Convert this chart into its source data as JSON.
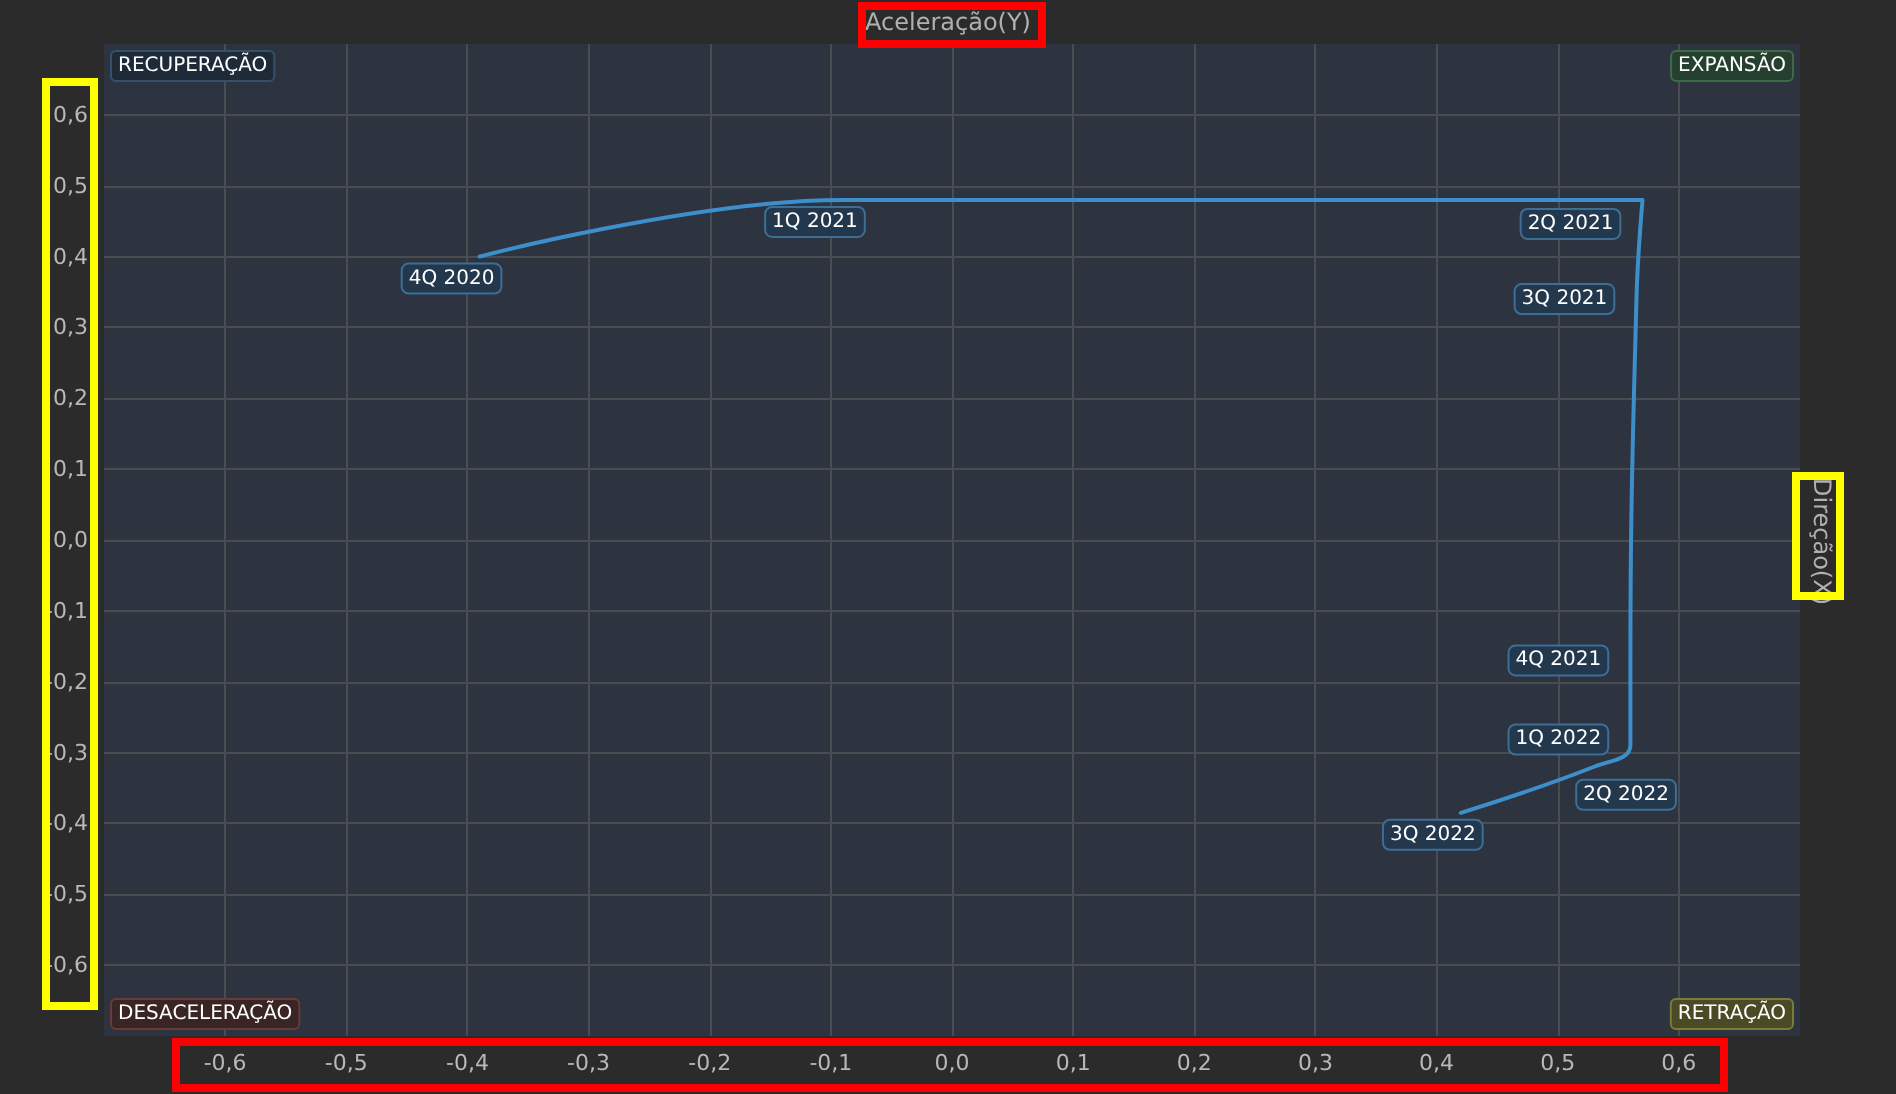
{
  "chart_data": {
    "type": "line",
    "series": [
      {
        "color": "#3d8fcc",
        "x": [
          -0.39,
          -0.09,
          0.57,
          0.565,
          0.56,
          0.56,
          0.53,
          0.42
        ],
        "values": [
          0.4,
          0.48,
          0.48,
          0.34,
          -0.17,
          -0.29,
          -0.32,
          -0.385
        ]
      }
    ],
    "annotations": [
      "RECUPERAÇÃO",
      "EXPANSÃO",
      "DESACELERAÇÃO",
      "RETRAÇÃO",
      "Aceleração(Y)",
      "Direção(X)",
      {
        "text": "4Q 2020",
        "x": -0.39,
        "y": 0.4
      },
      {
        "text": "1Q 2021",
        "x": -0.09,
        "y": 0.48
      },
      {
        "text": "2Q 2021",
        "x": 0.57,
        "y": 0.48
      },
      {
        "text": "3Q 2021",
        "x": 0.565,
        "y": 0.34
      },
      {
        "text": "4Q 2021",
        "x": 0.56,
        "y": -0.17
      },
      {
        "text": "1Q 2022",
        "x": 0.56,
        "y": -0.29
      },
      {
        "text": "2Q 2022",
        "x": 0.53,
        "y": -0.32
      },
      {
        "text": "3Q 2022",
        "x": 0.42,
        "y": -0.385
      }
    ],
    "xlim": [
      -0.7,
      0.7
    ],
    "ylim": [
      -0.7,
      0.7
    ],
    "xticks": [
      {
        "value": -0.6,
        "label": "-0,6"
      },
      {
        "value": -0.5,
        "label": "-0,5"
      },
      {
        "value": -0.4,
        "label": "-0,4"
      },
      {
        "value": -0.3,
        "label": "-0,3"
      },
      {
        "value": -0.2,
        "label": "-0,2"
      },
      {
        "value": -0.1,
        "label": "-0,1"
      },
      {
        "value": 0,
        "label": "0,0"
      },
      {
        "value": 0.1,
        "label": "0,1"
      },
      {
        "value": 0.2,
        "label": "0,2"
      },
      {
        "value": 0.3,
        "label": "0,3"
      },
      {
        "value": 0.4,
        "label": "0,4"
      },
      {
        "value": 0.5,
        "label": "0,5"
      },
      {
        "value": 0.6,
        "label": "0,6"
      }
    ],
    "yticks": [
      {
        "value": -0.6,
        "label": "-0,6"
      },
      {
        "value": -0.5,
        "label": "-0,5"
      },
      {
        "value": -0.4,
        "label": "-0,4"
      },
      {
        "value": -0.3,
        "label": "-0,3"
      },
      {
        "value": -0.2,
        "label": "-0,2"
      },
      {
        "value": -0.1,
        "label": "-0,1"
      },
      {
        "value": 0,
        "label": "0,0"
      },
      {
        "value": 0.1,
        "label": "0,1"
      },
      {
        "value": 0.2,
        "label": "0,2"
      },
      {
        "value": 0.3,
        "label": "0,3"
      },
      {
        "value": 0.4,
        "label": "0,4"
      },
      {
        "value": 0.5,
        "label": "0,5"
      },
      {
        "value": 0.6,
        "label": "0,6"
      }
    ],
    "grid": true,
    "marker": "none",
    "line_style": "solid"
  }
}
